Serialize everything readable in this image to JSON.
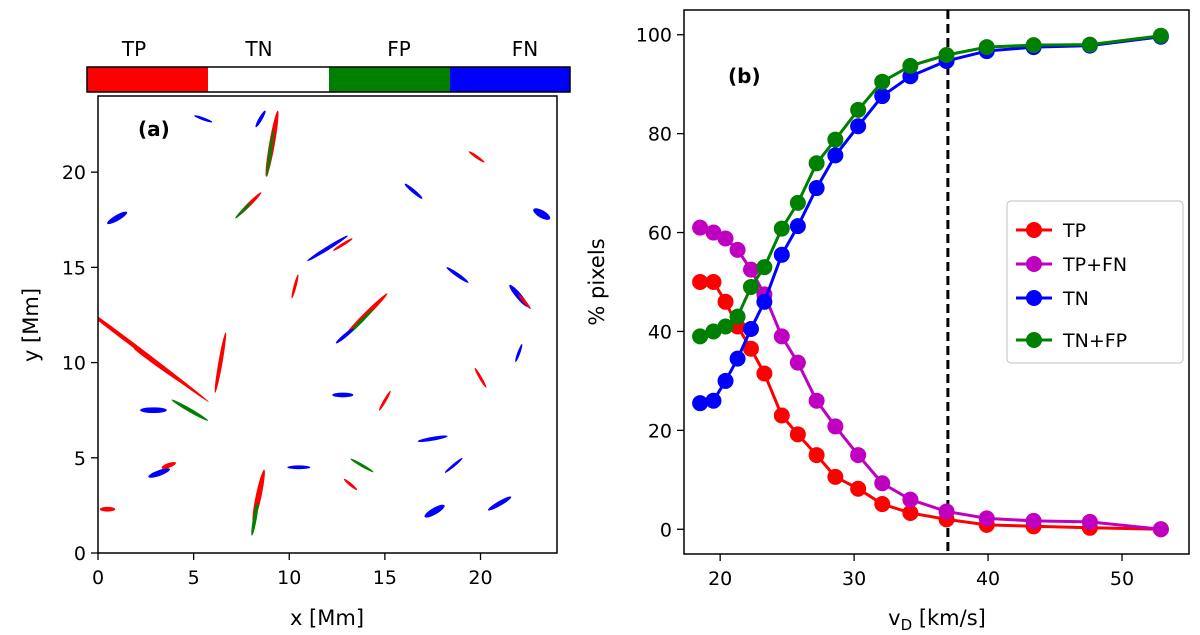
{
  "chart_data": [
    {
      "type": "heatmap",
      "panel_label": "(a)",
      "xlabel": "x [Mm]",
      "ylabel": "y [Mm]",
      "xlim": [
        0,
        24
      ],
      "ylim": [
        0,
        24
      ],
      "xticks": [
        0,
        5,
        10,
        15,
        20
      ],
      "yticks": [
        0,
        5,
        10,
        15,
        20
      ],
      "categories": [
        "TP",
        "TN",
        "FP",
        "FN"
      ],
      "category_colors": [
        "#ff0000",
        "#ffffff",
        "#008000",
        "#0000ff"
      ],
      "features": [
        {
          "cls": "TP",
          "x": 2.0,
          "y": 10.8,
          "len": 9.5,
          "ang": -37,
          "w": 0.22
        },
        {
          "cls": "TP",
          "x": 3.5,
          "y": 9.6,
          "len": 4.0,
          "ang": -35,
          "w": 0.18
        },
        {
          "cls": "FP",
          "x": 4.8,
          "y": 7.5,
          "len": 2.2,
          "ang": -30,
          "w": 0.2
        },
        {
          "cls": "FN",
          "x": 2.9,
          "y": 7.5,
          "len": 1.4,
          "ang": 0,
          "w": 0.3
        },
        {
          "cls": "TP",
          "x": 6.4,
          "y": 10.0,
          "len": 3.2,
          "ang": 80,
          "w": 0.22
        },
        {
          "cls": "TP",
          "x": 9.1,
          "y": 21.5,
          "len": 3.5,
          "ang": 80,
          "w": 0.3
        },
        {
          "cls": "FP",
          "x": 9.0,
          "y": 21.0,
          "len": 2.5,
          "ang": 82,
          "w": 0.18
        },
        {
          "cls": "FN",
          "x": 8.5,
          "y": 22.8,
          "len": 1.0,
          "ang": 60,
          "w": 0.2
        },
        {
          "cls": "TP",
          "x": 7.9,
          "y": 18.3,
          "len": 1.8,
          "ang": 45,
          "w": 0.2
        },
        {
          "cls": "FP",
          "x": 7.6,
          "y": 18.0,
          "len": 1.2,
          "ang": 45,
          "w": 0.15
        },
        {
          "cls": "TP",
          "x": 14.0,
          "y": 12.5,
          "len": 3.2,
          "ang": 45,
          "w": 0.25
        },
        {
          "cls": "FP",
          "x": 13.7,
          "y": 12.1,
          "len": 2.0,
          "ang": 45,
          "w": 0.15
        },
        {
          "cls": "FN",
          "x": 12.9,
          "y": 11.4,
          "len": 1.2,
          "ang": 40,
          "w": 0.2
        },
        {
          "cls": "FN",
          "x": 12.0,
          "y": 16.0,
          "len": 2.5,
          "ang": 32,
          "w": 0.2
        },
        {
          "cls": "TP",
          "x": 12.8,
          "y": 16.2,
          "len": 1.2,
          "ang": 32,
          "w": 0.15
        },
        {
          "cls": "TP",
          "x": 8.4,
          "y": 3.0,
          "len": 2.8,
          "ang": 78,
          "w": 0.3
        },
        {
          "cls": "FP",
          "x": 8.2,
          "y": 1.8,
          "len": 1.8,
          "ang": 80,
          "w": 0.2
        },
        {
          "cls": "FN",
          "x": 1.0,
          "y": 17.6,
          "len": 1.2,
          "ang": 30,
          "w": 0.3
        },
        {
          "cls": "FN",
          "x": 23.2,
          "y": 17.8,
          "len": 1.0,
          "ang": -30,
          "w": 0.4
        },
        {
          "cls": "FN",
          "x": 22.0,
          "y": 13.5,
          "len": 1.5,
          "ang": -50,
          "w": 0.3
        },
        {
          "cls": "TP",
          "x": 22.3,
          "y": 13.2,
          "len": 1.0,
          "ang": -50,
          "w": 0.15
        },
        {
          "cls": "FN",
          "x": 17.5,
          "y": 6.0,
          "len": 1.6,
          "ang": 10,
          "w": 0.2
        },
        {
          "cls": "FN",
          "x": 17.6,
          "y": 2.2,
          "len": 1.2,
          "ang": 30,
          "w": 0.35
        },
        {
          "cls": "FN",
          "x": 21.0,
          "y": 2.6,
          "len": 1.4,
          "ang": 30,
          "w": 0.25
        },
        {
          "cls": "FN",
          "x": 18.6,
          "y": 4.6,
          "len": 1.2,
          "ang": 40,
          "w": 0.15
        },
        {
          "cls": "FN",
          "x": 12.8,
          "y": 8.3,
          "len": 1.1,
          "ang": 0,
          "w": 0.25
        },
        {
          "cls": "TP",
          "x": 15.0,
          "y": 8.0,
          "len": 1.2,
          "ang": 60,
          "w": 0.15
        },
        {
          "cls": "FN",
          "x": 10.5,
          "y": 4.5,
          "len": 1.2,
          "ang": 0,
          "w": 0.2
        },
        {
          "cls": "FP",
          "x": 13.8,
          "y": 4.6,
          "len": 1.4,
          "ang": -30,
          "w": 0.15
        },
        {
          "cls": "TP",
          "x": 13.2,
          "y": 3.6,
          "len": 0.9,
          "ang": -40,
          "w": 0.15
        },
        {
          "cls": "FN",
          "x": 3.2,
          "y": 4.2,
          "len": 1.2,
          "ang": 20,
          "w": 0.3
        },
        {
          "cls": "TP",
          "x": 3.7,
          "y": 4.6,
          "len": 0.8,
          "ang": 20,
          "w": 0.25
        },
        {
          "cls": "FN",
          "x": 16.5,
          "y": 19.0,
          "len": 1.2,
          "ang": -40,
          "w": 0.2
        },
        {
          "cls": "TP",
          "x": 19.8,
          "y": 20.8,
          "len": 1.0,
          "ang": -35,
          "w": 0.15
        },
        {
          "cls": "FN",
          "x": 18.8,
          "y": 14.6,
          "len": 1.4,
          "ang": -35,
          "w": 0.2
        },
        {
          "cls": "TP",
          "x": 20.0,
          "y": 9.2,
          "len": 1.2,
          "ang": -60,
          "w": 0.15
        },
        {
          "cls": "FN",
          "x": 22.0,
          "y": 10.5,
          "len": 1.0,
          "ang": 70,
          "w": 0.15
        },
        {
          "cls": "TP",
          "x": 0.5,
          "y": 2.3,
          "len": 0.8,
          "ang": 0,
          "w": 0.25
        },
        {
          "cls": "FN",
          "x": 5.5,
          "y": 22.8,
          "len": 1.0,
          "ang": -20,
          "w": 0.15
        },
        {
          "cls": "TP",
          "x": 10.3,
          "y": 14.0,
          "len": 1.3,
          "ang": 75,
          "w": 0.15
        }
      ]
    },
    {
      "type": "line",
      "panel_label": "(b)",
      "xlabel": "v",
      "xlabel_sub": "D",
      "xlabel_units": " [km/s]",
      "ylabel": "% pixels",
      "xlim": [
        17.3,
        55.0
      ],
      "ylim": [
        -5,
        105
      ],
      "xticks": [
        20,
        30,
        40,
        50
      ],
      "yticks": [
        0,
        20,
        40,
        60,
        80,
        100
      ],
      "vline": 37.0,
      "legend_position": "center-right",
      "x": [
        18.5,
        19.5,
        20.4,
        21.3,
        22.3,
        23.3,
        24.6,
        25.8,
        27.2,
        28.6,
        30.3,
        32.1,
        34.2,
        36.9,
        39.9,
        43.4,
        47.6,
        52.9
      ],
      "series": [
        {
          "name": "TP",
          "color": "#ff0000",
          "values": [
            50,
            50,
            46,
            41,
            36.5,
            31.5,
            23,
            19.2,
            15,
            10.6,
            8.2,
            5.1,
            3.3,
            2.0,
            0.9,
            0.6,
            0.3,
            0
          ]
        },
        {
          "name": "TP+FN",
          "color": "#c000c0",
          "values": [
            61,
            60,
            58.8,
            56.5,
            52.5,
            47.5,
            39,
            33.7,
            26,
            20.8,
            15,
            9.3,
            6.0,
            3.6,
            2.2,
            1.7,
            1.5,
            0
          ]
        },
        {
          "name": "TN",
          "color": "#0000ff",
          "values": [
            25.5,
            26,
            30,
            34.5,
            40.5,
            46,
            55.5,
            61.3,
            69,
            75.6,
            81.5,
            87.6,
            91.6,
            94.7,
            96.7,
            97.5,
            97.8,
            99.6
          ]
        },
        {
          "name": "TN+FP",
          "color": "#008000",
          "values": [
            39,
            40,
            41,
            43,
            49,
            53,
            60.8,
            66,
            74,
            78.8,
            84.8,
            90.5,
            93.7,
            95.9,
            97.5,
            97.9,
            98.0,
            99.8
          ]
        }
      ]
    }
  ]
}
